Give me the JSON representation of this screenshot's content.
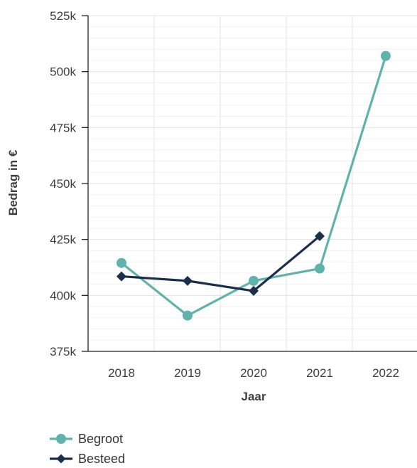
{
  "chart_data": {
    "type": "line",
    "xlabel": "Jaar",
    "ylabel": "Bedrag in €",
    "categories": [
      "2018",
      "2019",
      "2020",
      "2021",
      "2022"
    ],
    "ylim": [
      375000,
      525000
    ],
    "yticks": [
      375000,
      400000,
      425000,
      450000,
      475000,
      500000,
      525000
    ],
    "ytick_labels": [
      "375k",
      "400k",
      "425k",
      "450k",
      "475k",
      "500k",
      "525k"
    ],
    "grid": true,
    "legend_position": "bottom-left",
    "series": [
      {
        "name": "Begroot",
        "color": "#5fb3ac",
        "marker": "circle",
        "values": [
          414500,
          391000,
          406500,
          412000,
          507000
        ]
      },
      {
        "name": "Besteed",
        "color": "#1b2f4a",
        "marker": "diamond",
        "values": [
          408500,
          406500,
          402000,
          426500,
          null
        ]
      }
    ]
  }
}
